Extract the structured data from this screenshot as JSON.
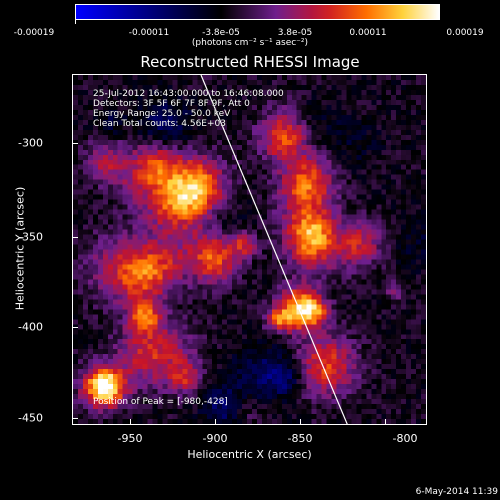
{
  "colorbar": {
    "ticks": [
      "-0.00019",
      "-0.00011",
      "-3.8e-05",
      "3.8e-05",
      "0.00011",
      "0.00019"
    ],
    "units": "(photons cm⁻² s⁻¹ asec⁻²)"
  },
  "plot": {
    "title": "Reconstructed RHESSI Image",
    "info": [
      "25-Jul-2012 16:43:00.000 to 16:46:08.000",
      "Detectors: 3F 5F 6F 7F 8F 9F, Att 0",
      "Energy Range: 25.0 - 50.0 keV",
      "Clean    Total counts: 4.56E+03"
    ],
    "peak_label": "Position of Peak = [-980,-428]",
    "x_ticks": [
      "-950",
      "-900",
      "-850",
      "-800"
    ],
    "y_ticks": [
      "-300",
      "-350",
      "-400",
      "-450"
    ],
    "xlabel": "Heliocentric X (arcsec)",
    "ylabel": "Heliocentric Y (arcsec)"
  },
  "footer": {
    "timestamp": "6-May-2014 11:39"
  }
}
